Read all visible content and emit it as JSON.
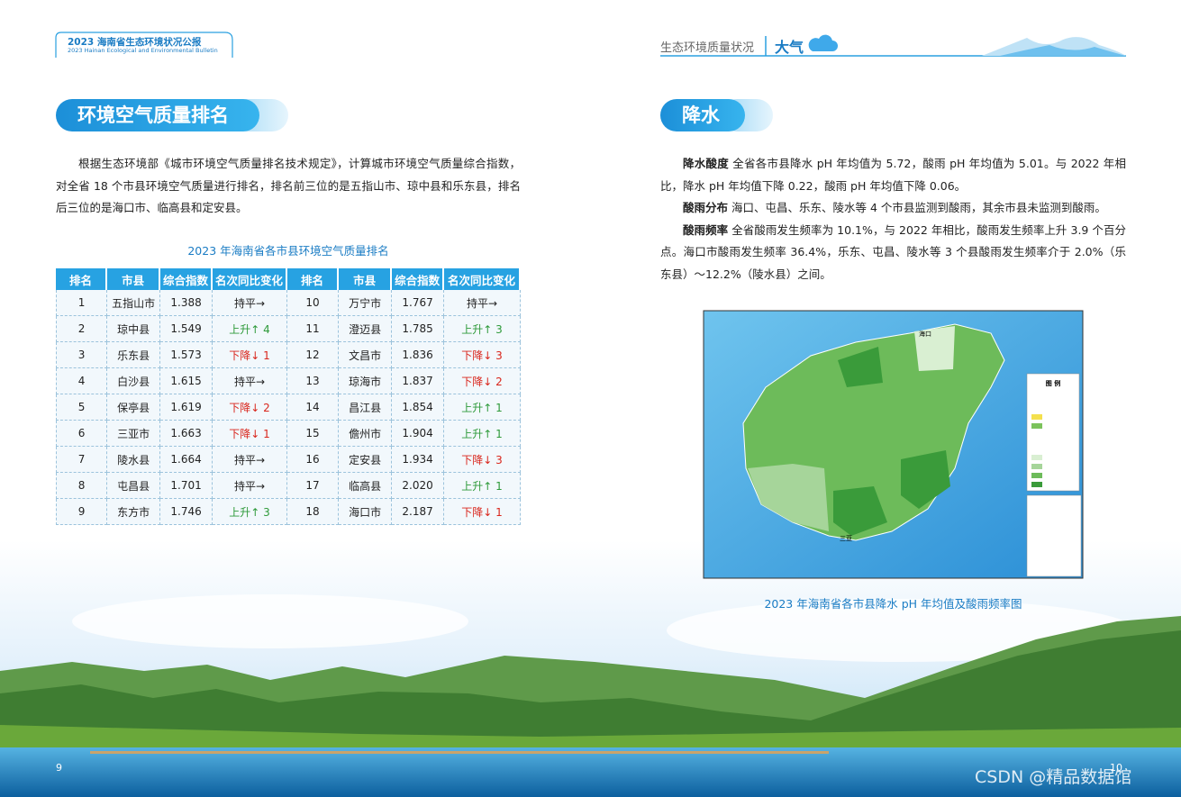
{
  "header_left": {
    "title": "2023 海南省生态环境状况公报",
    "subtitle": "2023 Hainan Ecological and Environmental Bulletin"
  },
  "header_right": {
    "section": "生态环境质量状况",
    "topic": "大气"
  },
  "left": {
    "heading": "环境空气质量排名",
    "paragraph": "根据生态环境部《城市环境空气质量排名技术规定》，计算城市环境空气质量综合指数，对全省 18 个市县环境空气质量进行排名，排名前三位的是五指山市、琼中县和乐东县，排名后三位的是海口市、临高县和定安县。",
    "table": {
      "caption": "2023 年海南省各市县环境空气质量排名",
      "header": [
        "排名",
        "市县",
        "综合指数",
        "名次同比变化",
        "排名",
        "市县",
        "综合指数",
        "名次同比变化"
      ],
      "rows": [
        [
          "1",
          "五指山市",
          "1.388",
          {
            "text": "持平→",
            "color": "#222222"
          },
          "10",
          "万宁市",
          "1.767",
          {
            "text": "持平→",
            "color": "#222222"
          }
        ],
        [
          "2",
          "琼中县",
          "1.549",
          {
            "text": "上升↑ 4",
            "color": "#2e9a3a"
          },
          "11",
          "澄迈县",
          "1.785",
          {
            "text": "上升↑ 3",
            "color": "#2e9a3a"
          }
        ],
        [
          "3",
          "乐东县",
          "1.573",
          {
            "text": "下降↓ 1",
            "color": "#d9261c"
          },
          "12",
          "文昌市",
          "1.836",
          {
            "text": "下降↓ 3",
            "color": "#d9261c"
          }
        ],
        [
          "4",
          "白沙县",
          "1.615",
          {
            "text": "持平→",
            "color": "#222222"
          },
          "13",
          "琼海市",
          "1.837",
          {
            "text": "下降↓ 2",
            "color": "#d9261c"
          }
        ],
        [
          "5",
          "保亭县",
          "1.619",
          {
            "text": "下降↓ 2",
            "color": "#d9261c"
          },
          "14",
          "昌江县",
          "1.854",
          {
            "text": "上升↑ 1",
            "color": "#2e9a3a"
          }
        ],
        [
          "6",
          "三亚市",
          "1.663",
          {
            "text": "下降↓ 1",
            "color": "#d9261c"
          },
          "15",
          "儋州市",
          "1.904",
          {
            "text": "上升↑ 1",
            "color": "#2e9a3a"
          }
        ],
        [
          "7",
          "陵水县",
          "1.664",
          {
            "text": "持平→",
            "color": "#222222"
          },
          "16",
          "定安县",
          "1.934",
          {
            "text": "下降↓ 3",
            "color": "#d9261c"
          }
        ],
        [
          "8",
          "屯昌县",
          "1.701",
          {
            "text": "持平→",
            "color": "#222222"
          },
          "17",
          "临高县",
          "2.020",
          {
            "text": "上升↑ 1",
            "color": "#2e9a3a"
          }
        ],
        [
          "9",
          "东方市",
          "1.746",
          {
            "text": "上升↑ 3",
            "color": "#2e9a3a"
          },
          "18",
          "海口市",
          "2.187",
          {
            "text": "下降↓ 1",
            "color": "#d9261c"
          }
        ]
      ]
    },
    "page_number": "9"
  },
  "right": {
    "heading": "降水",
    "paragraphs": [
      {
        "lead": "降水酸度",
        "text": " 全省各市县降水 pH 年均值为 5.72，酸雨 pH 年均值为 5.01。与 2022 年相比，降水 pH 年均值下降 0.22，酸雨 pH 年均值下降 0.06。"
      },
      {
        "lead": "酸雨分布",
        "text": " 海口、屯昌、乐东、陵水等 4 个市县监测到酸雨，其余市县未监测到酸雨。"
      },
      {
        "lead": "酸雨频率",
        "text": " 全省酸雨发生频率为 10.1%，与 2022 年相比，酸雨发生频率上升 3.9 个百分点。海口市酸雨发生频率 36.4%，乐东、屯昌、陵水等 3 个县酸雨发生频率介于 2.0%（乐东县）～12.2%（陵水县）之间。"
      }
    ],
    "map": {
      "legend_title": "图 例",
      "labels": [
        "海口",
        "三亚"
      ]
    },
    "caption": "2023 年海南省各市县降水 pH 年均值及酸雨频率图",
    "page_number": "10"
  },
  "watermark": "CSDN @精品数据馆"
}
